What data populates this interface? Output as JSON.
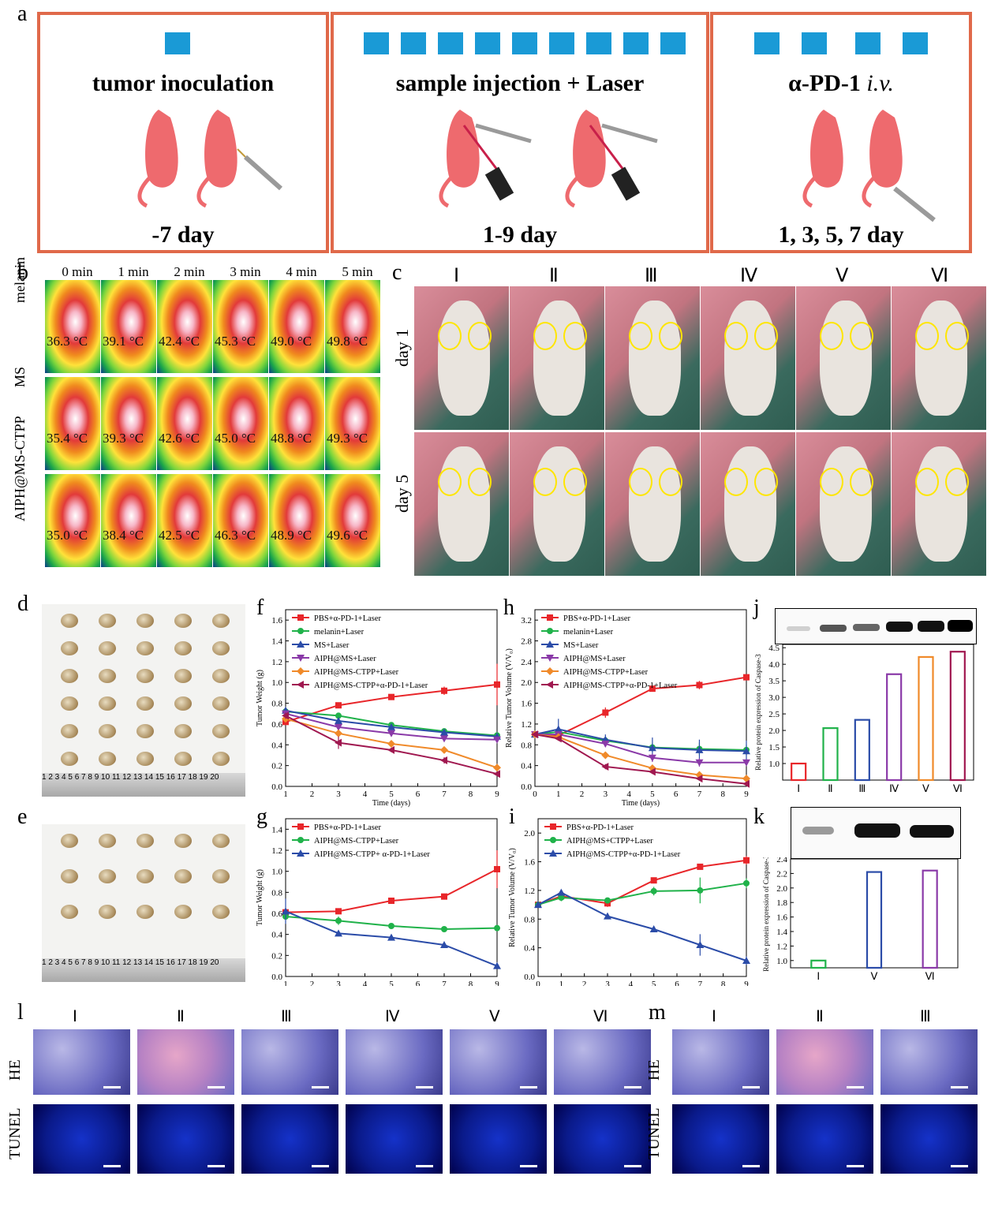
{
  "panel_labels": {
    "a": "a",
    "b": "b",
    "c": "c",
    "d": "d",
    "e": "e",
    "f": "f",
    "g": "g",
    "h": "h",
    "i": "i",
    "j": "j",
    "k": "k",
    "l": "l",
    "m": "m"
  },
  "panel_a": {
    "step1": {
      "title": "tumor inoculation",
      "day": "-7 day"
    },
    "step2": {
      "title": "sample injection + Laser",
      "day": "1-9 day"
    },
    "step3": {
      "title": "α-PD-1 ",
      "title_italic": "i.v.",
      "day": "1, 3, 5, 7 day"
    },
    "colors": {
      "border": "#e0694a",
      "square": "#1a9ad6",
      "mouse": "#ee6a6e"
    }
  },
  "panel_b": {
    "times": [
      "0 min",
      "1 min",
      "2 min",
      "3 min",
      "4 min",
      "5 min"
    ],
    "rows": [
      {
        "label": "melanin",
        "temps": [
          "36.3 °C",
          "39.1 °C",
          "42.4 °C",
          "45.3 °C",
          "49.0 °C",
          "49.8 °C"
        ]
      },
      {
        "label": "MS",
        "temps": [
          "35.4 °C",
          "39.3 °C",
          "42.6 °C",
          "45.0 °C",
          "48.8 °C",
          "49.3 °C"
        ]
      },
      {
        "label": "AIPH@MS-CTPP",
        "temps": [
          "35.0 °C",
          "38.4 °C",
          "42.5 °C",
          "46.3 °C",
          "48.9 °C",
          "49.6 °C"
        ]
      }
    ]
  },
  "panel_c": {
    "groups": [
      "Ⅰ",
      "Ⅱ",
      "Ⅲ",
      "Ⅳ",
      "Ⅴ",
      "Ⅵ"
    ],
    "rows": [
      "day 1",
      "day 5"
    ]
  },
  "panel_d": {
    "ruler": "1 2 3 4 5 6 7 8 9 10 11 12 13 14 15 16 17 18 19 20"
  },
  "panel_e": {
    "ruler": "1 2 3 4 5 6 7 8 9 10 11 12 13 14 15 16 17 18 19 20"
  },
  "chart_data": [
    {
      "id": "f",
      "type": "line",
      "xlabel": "Time (days)",
      "ylabel": "Tumor Weight (g)",
      "xlim": [
        1,
        9
      ],
      "ylim": [
        0,
        1.7
      ],
      "xticks": [
        1,
        2,
        3,
        4,
        5,
        6,
        7,
        8,
        9
      ],
      "yticks": [
        0.0,
        0.2,
        0.4,
        0.6,
        0.8,
        1.0,
        1.2,
        1.4,
        1.6
      ],
      "legend": "top-left",
      "series": [
        {
          "name": "PBS+α-PD-1+Laser",
          "color": "#e8262a",
          "marker": "square",
          "x": [
            1,
            3,
            5,
            7,
            9
          ],
          "y": [
            0.62,
            0.78,
            0.86,
            0.92,
            0.98
          ],
          "err": [
            0.03,
            0.02,
            0.02,
            0.04,
            0.2
          ]
        },
        {
          "name": "melanin+Laser",
          "color": "#20b24a",
          "marker": "circle",
          "x": [
            1,
            3,
            5,
            7,
            9
          ],
          "y": [
            0.72,
            0.68,
            0.59,
            0.53,
            0.49
          ],
          "err": [
            0.03,
            0.03,
            0.02,
            0.02,
            0.03
          ]
        },
        {
          "name": "MS+Laser",
          "color": "#2b4ca8",
          "marker": "triangle",
          "x": [
            1,
            3,
            5,
            7,
            9
          ],
          "y": [
            0.73,
            0.63,
            0.57,
            0.52,
            0.48
          ],
          "err": [
            0.03,
            0.02,
            0.02,
            0.02,
            0.02
          ]
        },
        {
          "name": "AIPH@MS+Laser",
          "color": "#8a3aa8",
          "marker": "tri-down",
          "x": [
            1,
            3,
            5,
            7,
            9
          ],
          "y": [
            0.7,
            0.57,
            0.51,
            0.46,
            0.45
          ],
          "err": [
            0.03,
            0.02,
            0.02,
            0.02,
            0.02
          ]
        },
        {
          "name": "AIPH@MS-CTPP+Laser",
          "color": "#f08a2a",
          "marker": "diamond",
          "x": [
            1,
            3,
            5,
            7,
            9
          ],
          "y": [
            0.65,
            0.51,
            0.41,
            0.35,
            0.18
          ],
          "err": [
            0.03,
            0.02,
            0.02,
            0.02,
            0.02
          ]
        },
        {
          "name": "AIPH@MS-CTPP+α-PD-1+Laser",
          "color": "#a01850",
          "marker": "tri-left",
          "x": [
            1,
            3,
            5,
            7,
            9
          ],
          "y": [
            0.68,
            0.42,
            0.35,
            0.25,
            0.12
          ],
          "err": [
            0.03,
            0.06,
            0.02,
            0.03,
            0.02
          ]
        }
      ]
    },
    {
      "id": "g",
      "type": "line",
      "xlabel": "Time (days)",
      "ylabel": "Tumor Weight (g)",
      "xlim": [
        1,
        9
      ],
      "ylim": [
        0,
        1.5
      ],
      "xticks": [
        1,
        2,
        3,
        4,
        5,
        6,
        7,
        8,
        9
      ],
      "yticks": [
        0.0,
        0.2,
        0.4,
        0.6,
        0.8,
        1.0,
        1.2,
        1.4
      ],
      "legend": "top-left",
      "series": [
        {
          "name": "PBS+α-PD-1+Laser",
          "color": "#e8262a",
          "marker": "square",
          "x": [
            1,
            3,
            5,
            7,
            9
          ],
          "y": [
            0.61,
            0.62,
            0.72,
            0.76,
            1.02
          ],
          "err": [
            0.03,
            0.02,
            0.02,
            0.02,
            0.18
          ]
        },
        {
          "name": "AIPH@MS-CTPP+Laser",
          "color": "#20b24a",
          "marker": "circle",
          "x": [
            1,
            3,
            5,
            7,
            9
          ],
          "y": [
            0.57,
            0.53,
            0.48,
            0.45,
            0.46
          ],
          "err": [
            0.03,
            0.04,
            0.02,
            0.02,
            0.02
          ]
        },
        {
          "name": "AIPH@MS-CTPP+ α-PD-1+Laser",
          "color": "#2b4ca8",
          "marker": "triangle",
          "x": [
            1,
            3,
            5,
            7,
            9
          ],
          "y": [
            0.62,
            0.41,
            0.37,
            0.3,
            0.1
          ],
          "err": [
            0.12,
            0.02,
            0.02,
            0.02,
            0.02
          ]
        }
      ]
    },
    {
      "id": "h",
      "type": "line",
      "xlabel": "Time (days)",
      "ylabel": "Relative Tumor Volume (V/V₀)",
      "xlim": [
        0,
        9
      ],
      "ylim": [
        0,
        3.4
      ],
      "xticks": [
        0,
        1,
        2,
        3,
        4,
        5,
        6,
        7,
        8,
        9
      ],
      "yticks": [
        0.0,
        0.4,
        0.8,
        1.2,
        1.6,
        2.0,
        2.4,
        2.8,
        3.2
      ],
      "legend": "top-left",
      "series": [
        {
          "name": "PBS+α-PD-1+Laser",
          "color": "#e8262a",
          "marker": "square",
          "x": [
            0,
            1,
            3,
            5,
            7,
            9
          ],
          "y": [
            1.0,
            0.98,
            1.42,
            1.88,
            1.95,
            2.1
          ],
          "err": [
            0.02,
            0.05,
            0.1,
            0.04,
            0.08,
            0.05
          ]
        },
        {
          "name": "melanin+Laser",
          "color": "#20b24a",
          "marker": "circle",
          "x": [
            0,
            1,
            3,
            5,
            7,
            9
          ],
          "y": [
            1.0,
            1.05,
            0.88,
            0.75,
            0.72,
            0.7
          ],
          "err": [
            0.02,
            0.06,
            0.06,
            0.08,
            0.12,
            0.1
          ]
        },
        {
          "name": "MS+Laser",
          "color": "#2b4ca8",
          "marker": "triangle",
          "x": [
            0,
            1,
            3,
            5,
            7,
            9
          ],
          "y": [
            1.0,
            1.1,
            0.9,
            0.74,
            0.7,
            0.68
          ],
          "err": [
            0.02,
            0.2,
            0.1,
            0.2,
            0.2,
            0.2
          ]
        },
        {
          "name": "AIPH@MS+Laser",
          "color": "#8a3aa8",
          "marker": "tri-down",
          "x": [
            0,
            1,
            3,
            5,
            7,
            9
          ],
          "y": [
            1.0,
            1.0,
            0.82,
            0.55,
            0.46,
            0.46
          ],
          "err": [
            0.02,
            0.05,
            0.06,
            0.08,
            0.08,
            0.06
          ]
        },
        {
          "name": "AIPH@MS-CTPP+Laser",
          "color": "#f08a2a",
          "marker": "diamond",
          "x": [
            0,
            1,
            3,
            5,
            7,
            9
          ],
          "y": [
            1.0,
            0.95,
            0.6,
            0.35,
            0.22,
            0.15
          ],
          "err": [
            0.02,
            0.04,
            0.06,
            0.04,
            0.04,
            0.03
          ]
        },
        {
          "name": "AIPH@MS-CTPP+α-PD-1+Laser",
          "color": "#a01850",
          "marker": "tri-left",
          "x": [
            0,
            1,
            3,
            5,
            7,
            9
          ],
          "y": [
            1.0,
            0.92,
            0.38,
            0.28,
            0.15,
            0.05
          ],
          "err": [
            0.02,
            0.04,
            0.05,
            0.04,
            0.03,
            0.02
          ]
        }
      ]
    },
    {
      "id": "i",
      "type": "line",
      "xlabel": "Time (days)",
      "ylabel": "Relative Tumor Volume (V/V₀)",
      "xlim": [
        0,
        9
      ],
      "ylim": [
        0,
        2.2
      ],
      "xticks": [
        0,
        1,
        2,
        3,
        4,
        5,
        6,
        7,
        8,
        9
      ],
      "yticks": [
        0.0,
        0.4,
        0.8,
        1.2,
        1.6,
        2.0
      ],
      "legend": "top-left",
      "series": [
        {
          "name": "PBS+α-PD-1+Laser",
          "color": "#e8262a",
          "marker": "square",
          "x": [
            0,
            1,
            3,
            5,
            7,
            9
          ],
          "y": [
            1.0,
            1.12,
            1.02,
            1.34,
            1.53,
            1.62
          ],
          "err": [
            0.02,
            0.06,
            0.05,
            0.03,
            0.03,
            0.06
          ]
        },
        {
          "name": "AIPH@MS+CTPP+Laser",
          "color": "#20b24a",
          "marker": "circle",
          "x": [
            0,
            1,
            3,
            5,
            7,
            9
          ],
          "y": [
            1.0,
            1.1,
            1.06,
            1.19,
            1.2,
            1.3
          ],
          "err": [
            0.02,
            0.05,
            0.03,
            0.06,
            0.18,
            0.07
          ]
        },
        {
          "name": "AIPH@MS-CTPP+α-PD-1+Laser",
          "color": "#2b4ca8",
          "marker": "triangle",
          "x": [
            0,
            1,
            3,
            5,
            7,
            9
          ],
          "y": [
            1.0,
            1.17,
            0.84,
            0.66,
            0.44,
            0.22
          ],
          "err": [
            0.02,
            0.04,
            0.02,
            0.02,
            0.15,
            0.06
          ]
        }
      ]
    },
    {
      "id": "j",
      "type": "bar",
      "ylabel": "Relative protein expression of Caspase-3",
      "categories": [
        "Ⅰ",
        "Ⅱ",
        "Ⅲ",
        "Ⅳ",
        "Ⅴ",
        "Ⅵ"
      ],
      "values": [
        1.0,
        2.07,
        2.32,
        3.7,
        4.22,
        4.38
      ],
      "colors": [
        "#e8262a",
        "#20b24a",
        "#2b4ca8",
        "#8a3aa8",
        "#f08a2a",
        "#a01850"
      ],
      "ylim": [
        0.5,
        4.6
      ],
      "yticks": [
        1.0,
        1.5,
        2.0,
        2.5,
        3.0,
        3.5,
        4.0,
        4.5
      ]
    },
    {
      "id": "k",
      "type": "bar",
      "ylabel": "Relative protein expression of Caspase-3",
      "categories": [
        "Ⅰ",
        "Ⅴ",
        "Ⅵ"
      ],
      "values": [
        1.0,
        2.22,
        2.24
      ],
      "colors": [
        "#20b24a",
        "#2b4ca8",
        "#8a3aa8"
      ],
      "ylim": [
        0.9,
        2.4
      ],
      "yticks": [
        1.0,
        1.2,
        1.4,
        1.6,
        1.8,
        2.0,
        2.2,
        2.4
      ]
    }
  ],
  "panel_l": {
    "groups": [
      "Ⅰ",
      "Ⅱ",
      "Ⅲ",
      "Ⅳ",
      "Ⅴ",
      "Ⅵ"
    ],
    "rows": [
      "HE",
      "TUNEL"
    ]
  },
  "panel_m": {
    "groups": [
      "Ⅰ",
      "Ⅱ",
      "Ⅲ"
    ],
    "rows": [
      "HE",
      "TUNEL"
    ]
  }
}
